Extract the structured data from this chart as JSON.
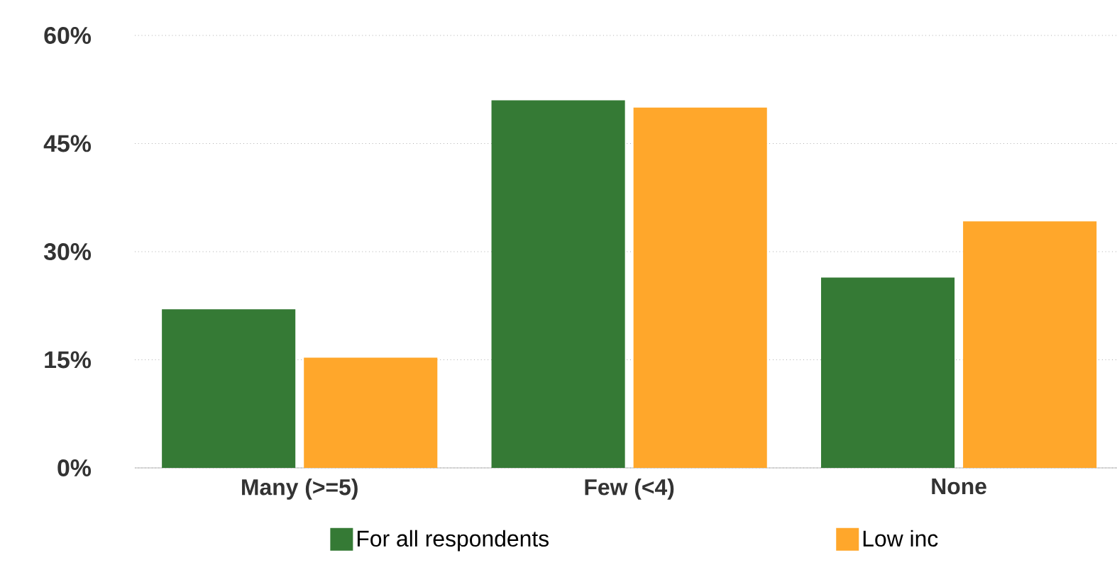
{
  "chart_data": {
    "type": "bar",
    "categories": [
      "Many (>=5)",
      "Few (<4)",
      "None"
    ],
    "series": [
      {
        "name": "For all respondents",
        "color": "#357a35",
        "values": [
          22.0,
          51.0,
          26.4
        ]
      },
      {
        "name": "Low inc",
        "color": "#ffa72b",
        "values": [
          15.3,
          50.0,
          34.2
        ]
      }
    ],
    "ylim": [
      0,
      60
    ],
    "yticks": [
      {
        "value": 0,
        "label": "0%"
      },
      {
        "value": 15,
        "label": "15%"
      },
      {
        "value": 30,
        "label": "30%"
      },
      {
        "value": 45,
        "label": "45%"
      },
      {
        "value": 60,
        "label": "60%"
      }
    ],
    "grid": "y",
    "legend": "bottom"
  }
}
